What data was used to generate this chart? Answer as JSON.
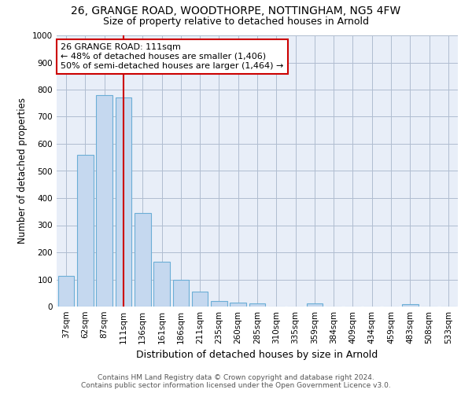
{
  "title1": "26, GRANGE ROAD, WOODTHORPE, NOTTINGHAM, NG5 4FW",
  "title2": "Size of property relative to detached houses in Arnold",
  "xlabel": "Distribution of detached houses by size in Arnold",
  "ylabel": "Number of detached properties",
  "categories": [
    "37sqm",
    "62sqm",
    "87sqm",
    "111sqm",
    "136sqm",
    "161sqm",
    "186sqm",
    "211sqm",
    "235sqm",
    "260sqm",
    "285sqm",
    "310sqm",
    "335sqm",
    "359sqm",
    "384sqm",
    "409sqm",
    "434sqm",
    "459sqm",
    "483sqm",
    "508sqm",
    "533sqm"
  ],
  "values": [
    113,
    558,
    780,
    770,
    344,
    165,
    98,
    55,
    20,
    15,
    12,
    0,
    0,
    11,
    0,
    0,
    0,
    0,
    9,
    0,
    0
  ],
  "bar_color": "#c5d8ef",
  "bar_edgecolor": "#6baed6",
  "vline_x_index": 3,
  "vline_color": "#cc0000",
  "annotation_text": "26 GRANGE ROAD: 111sqm\n← 48% of detached houses are smaller (1,406)\n50% of semi-detached houses are larger (1,464) →",
  "annotation_box_edgecolor": "#cc0000",
  "annotation_box_facecolor": "#ffffff",
  "ylim": [
    0,
    1000
  ],
  "yticks": [
    0,
    100,
    200,
    300,
    400,
    500,
    600,
    700,
    800,
    900,
    1000
  ],
  "background_color": "#ffffff",
  "axes_facecolor": "#e8eef8",
  "grid_color": "#b0bdd0",
  "footer_line1": "Contains HM Land Registry data © Crown copyright and database right 2024.",
  "footer_line2": "Contains public sector information licensed under the Open Government Licence v3.0.",
  "title1_fontsize": 10,
  "title2_fontsize": 9,
  "xlabel_fontsize": 9,
  "ylabel_fontsize": 8.5,
  "tick_fontsize": 7.5,
  "annotation_fontsize": 8,
  "footer_fontsize": 6.5
}
